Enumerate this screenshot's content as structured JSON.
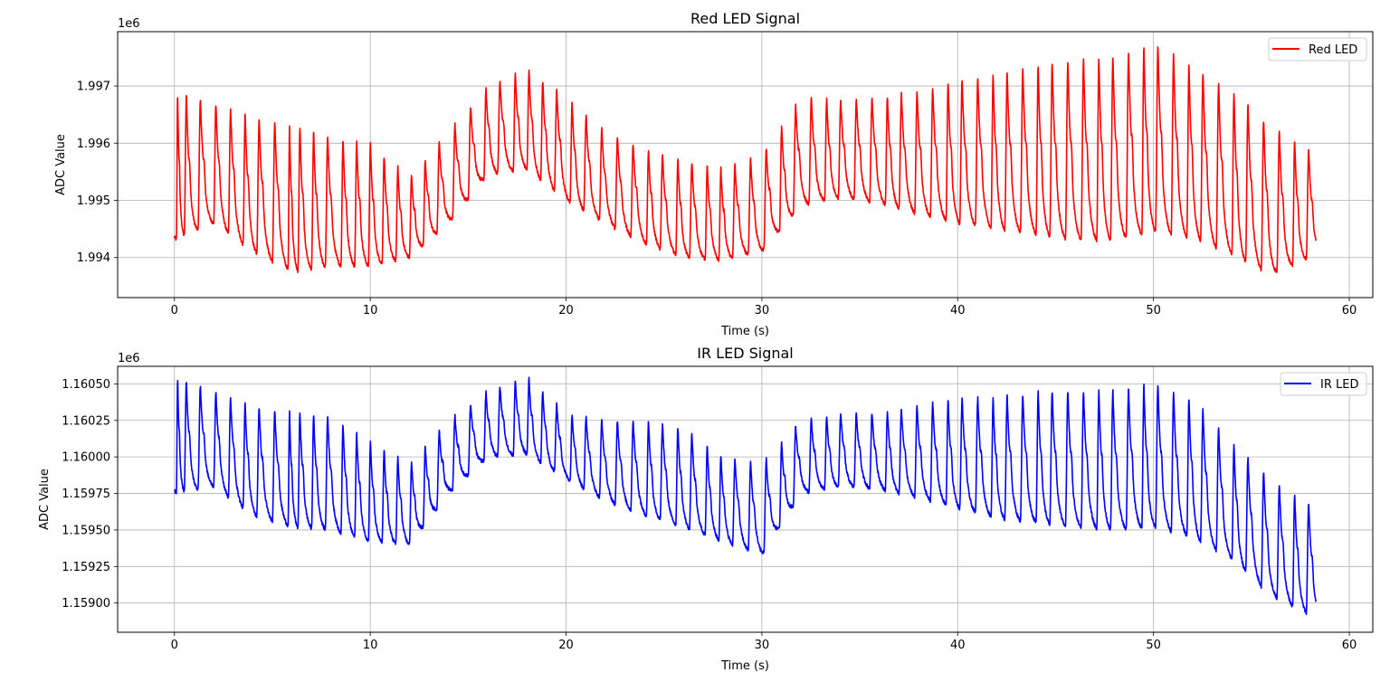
{
  "chart_data": [
    {
      "type": "line",
      "title": "Red LED Signal",
      "xlabel": "Time (s)",
      "ylabel": "ADC Value",
      "y_offset_label": "1e6",
      "xlim": [
        -2.9,
        61.2
      ],
      "ylim": [
        1993.3,
        1997.95
      ],
      "y_unit_scale": 1000,
      "xticks": [
        0,
        10,
        20,
        30,
        40,
        50,
        60
      ],
      "xtick_labels": [
        "0",
        "10",
        "20",
        "30",
        "40",
        "50",
        "60"
      ],
      "yticks": [
        1994,
        1995,
        1996,
        1997
      ],
      "ytick_labels": [
        "1.994",
        "1.995",
        "1.996",
        "1.997"
      ],
      "grid": true,
      "legend_position": "upper-right",
      "color": "#ff0000",
      "series": [
        {
          "name": "Red LED",
          "signal": {
            "t_start": 0,
            "t_end": 58.3,
            "beat_period_s": 0.79,
            "trough_times": [
              0.1,
              0.5,
              1.2,
              2.0,
              2.75,
              3.5,
              4.2,
              5.0,
              5.8,
              6.3,
              7.0,
              7.7,
              8.5,
              9.2,
              9.9,
              10.6,
              11.3,
              12.0,
              12.7,
              13.4,
              14.2,
              15.0,
              15.8,
              16.5,
              17.3,
              18.0,
              18.7,
              19.4,
              20.2,
              20.9,
              21.7,
              22.5,
              23.3,
              24.1,
              24.8,
              25.6,
              26.3,
              27.1,
              27.8,
              28.5,
              29.3,
              30.1,
              30.9,
              31.6,
              32.4,
              33.2,
              33.9,
              34.7,
              35.5,
              36.3,
              37.0,
              37.8,
              38.6,
              39.4,
              40.1,
              40.9,
              41.7,
              42.4,
              43.2,
              44.0,
              44.7,
              45.5,
              46.3,
              47.1,
              47.8,
              48.6,
              49.4,
              50.1,
              50.9,
              51.7,
              52.4,
              53.2,
              54.0,
              54.7,
              55.5,
              56.3,
              57.1,
              57.8
            ],
            "baseline_knots_t": [
              0,
              2,
              4,
              6,
              8,
              10,
              12,
              14,
              16,
              18,
              20,
              22,
              24,
              26,
              28,
              30,
              32,
              34,
              36,
              38,
              40,
              42,
              44,
              46,
              48,
              50,
              52,
              54,
              56,
              58.3
            ],
            "trough_knots": [
              1994.3,
              1994.6,
              1994.1,
              1993.75,
              1993.85,
              1993.85,
              1994.0,
              1994.6,
              1995.45,
              1995.55,
              1995.0,
              1994.6,
              1994.25,
              1994.0,
              1993.95,
              1994.1,
              1994.9,
              1995.05,
              1994.95,
              1994.75,
              1994.6,
              1994.5,
              1994.4,
              1994.3,
              1994.3,
              1994.45,
              1994.35,
              1994.05,
              1993.7,
              1994.05
            ],
            "peak_knots": [
              1996.9,
              1996.7,
              1996.45,
              1996.3,
              1996.1,
              1996.0,
              1995.4,
              1996.2,
              1997.0,
              1997.3,
              1996.8,
              1996.2,
              1995.9,
              1995.7,
              1995.55,
              1995.8,
              1996.8,
              1996.75,
              1996.8,
              1996.9,
              1997.1,
              1997.2,
              1997.35,
              1997.45,
              1997.5,
              1997.75,
              1997.35,
              1996.9,
              1996.3,
              1995.8
            ],
            "noise": 0.03
          }
        }
      ]
    },
    {
      "type": "line",
      "title": "IR LED Signal",
      "xlabel": "Time (s)",
      "ylabel": "ADC Value",
      "y_offset_label": "1e6",
      "xlim": [
        -2.9,
        61.2
      ],
      "ylim": [
        1158.8,
        1160.62
      ],
      "y_unit_scale": 1000,
      "xticks": [
        0,
        10,
        20,
        30,
        40,
        50,
        60
      ],
      "xtick_labels": [
        "0",
        "10",
        "20",
        "30",
        "40",
        "50",
        "60"
      ],
      "yticks": [
        1159.0,
        1159.25,
        1159.5,
        1159.75,
        1160.0,
        1160.25,
        1160.5
      ],
      "ytick_labels": [
        "1.15900",
        "1.15925",
        "1.15950",
        "1.15975",
        "1.16000",
        "1.16025",
        "1.16050"
      ],
      "grid": true,
      "legend_position": "upper-right",
      "color": "#0000ff",
      "series": [
        {
          "name": "IR LED",
          "signal": {
            "t_start": 0,
            "t_end": 58.3,
            "beat_period_s": 0.79,
            "trough_times": [
              0.1,
              0.5,
              1.2,
              2.0,
              2.75,
              3.5,
              4.2,
              5.0,
              5.8,
              6.3,
              7.0,
              7.7,
              8.5,
              9.2,
              9.9,
              10.6,
              11.3,
              12.0,
              12.7,
              13.4,
              14.2,
              15.0,
              15.8,
              16.5,
              17.3,
              18.0,
              18.7,
              19.4,
              20.2,
              20.9,
              21.7,
              22.5,
              23.3,
              24.1,
              24.8,
              25.6,
              26.3,
              27.1,
              27.8,
              28.5,
              29.3,
              30.1,
              30.9,
              31.6,
              32.4,
              33.2,
              33.9,
              34.7,
              35.5,
              36.3,
              37.0,
              37.8,
              38.6,
              39.4,
              40.1,
              40.9,
              41.7,
              42.4,
              43.2,
              44.0,
              44.7,
              45.5,
              46.3,
              47.1,
              47.8,
              48.6,
              49.4,
              50.1,
              50.9,
              51.7,
              52.4,
              53.2,
              54.0,
              54.7,
              55.5,
              56.3,
              57.1,
              57.8
            ],
            "baseline_knots_t": [
              0,
              2,
              4,
              6,
              8,
              10,
              12,
              14,
              16,
              18,
              20,
              22,
              24,
              26,
              28,
              30,
              32,
              34,
              36,
              38,
              40,
              42,
              44,
              46,
              48,
              50,
              52,
              54,
              56,
              58.3
            ],
            "trough_knots": [
              1159.75,
              1159.8,
              1159.6,
              1159.52,
              1159.5,
              1159.42,
              1159.4,
              1159.75,
              1160.0,
              1160.02,
              1159.85,
              1159.7,
              1159.6,
              1159.52,
              1159.42,
              1159.33,
              1159.75,
              1159.8,
              1159.78,
              1159.72,
              1159.65,
              1159.58,
              1159.55,
              1159.52,
              1159.5,
              1159.52,
              1159.45,
              1159.3,
              1159.05,
              1158.9
            ],
            "peak_knots": [
              1160.55,
              1160.45,
              1160.35,
              1160.3,
              1160.28,
              1160.1,
              1159.95,
              1160.25,
              1160.45,
              1160.55,
              1160.3,
              1160.25,
              1160.25,
              1160.2,
              1160.0,
              1159.95,
              1160.25,
              1160.3,
              1160.3,
              1160.35,
              1160.4,
              1160.4,
              1160.45,
              1160.45,
              1160.45,
              1160.5,
              1160.4,
              1160.1,
              1159.85,
              1159.65
            ],
            "noise": 0.012
          }
        }
      ]
    }
  ]
}
